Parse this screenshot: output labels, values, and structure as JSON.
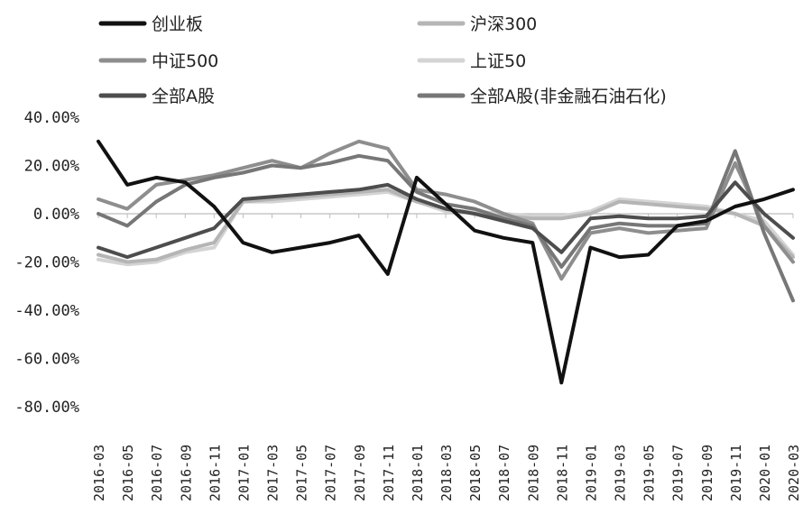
{
  "chart_data": {
    "type": "line",
    "title": "",
    "xlabel": "",
    "ylabel": "",
    "ylim": [
      -80,
      40
    ],
    "y_ticks": [
      "40.00%",
      "20.00%",
      "0.00%",
      "-20.00%",
      "-40.00%",
      "-60.00%",
      "-80.00%"
    ],
    "y_tick_values": [
      40,
      20,
      0,
      -20,
      -40,
      -60,
      -80
    ],
    "grid": false,
    "legend_position": "top",
    "categories": [
      "2016-03",
      "2016-05",
      "2016-07",
      "2016-09",
      "2016-11",
      "2017-01",
      "2017-03",
      "2017-05",
      "2017-07",
      "2017-09",
      "2017-11",
      "2018-01",
      "2018-03",
      "2018-05",
      "2018-07",
      "2018-09",
      "2018-11",
      "2019-01",
      "2019-03",
      "2019-05",
      "2019-07",
      "2019-09",
      "2019-11",
      "2020-01",
      "2020-03"
    ],
    "x_tick_labels": [
      "2016-03",
      "2016-05",
      "2016-07",
      "2016-09",
      "2016-11",
      "2017-01",
      "2017-03",
      "2017-05",
      "2017-07",
      "2017-09",
      "2017-11",
      "2018-01",
      "2018-03",
      "2018-05",
      "2018-07",
      "2018-09",
      "2018-11",
      "2019-01",
      "2019-03",
      "2019-05",
      "2019-07",
      "2019-09",
      "2019-11",
      "2020-01",
      "2020-03"
    ],
    "series": [
      {
        "name": "创业板",
        "color": "#111111",
        "values": [
          30,
          12,
          15,
          13,
          3,
          -12,
          -16,
          -14,
          -12,
          -9,
          -25,
          15,
          4,
          -7,
          -10,
          -12,
          -70,
          -14,
          -18,
          -17,
          -5,
          -3,
          3,
          6,
          10
        ]
      },
      {
        "name": "沪深300",
        "color": "#b5b5b5",
        "values": [
          -17,
          -20,
          -19,
          -15,
          -12,
          5,
          6,
          7,
          8,
          9,
          10,
          5,
          2,
          0,
          -1,
          -2,
          -2,
          0,
          5,
          4,
          3,
          2,
          0,
          -5,
          -18
        ]
      },
      {
        "name": "中证500",
        "color": "#8e8e8e",
        "values": [
          6,
          2,
          12,
          14,
          16,
          19,
          22,
          19,
          25,
          30,
          27,
          10,
          8,
          5,
          0,
          -4,
          -27,
          -8,
          -6,
          -8,
          -7,
          -6,
          21,
          -5,
          -20
        ]
      },
      {
        "name": "上证50",
        "color": "#d4d4d4",
        "values": [
          -19,
          -21,
          -20,
          -16,
          -14,
          5,
          5,
          6,
          7,
          8,
          9,
          5,
          1,
          1,
          0,
          -1,
          -1,
          1,
          6,
          5,
          4,
          3,
          0,
          -3,
          -17
        ]
      },
      {
        "name": "全部A股",
        "color": "#4d4d4d",
        "values": [
          -14,
          -18,
          -14,
          -10,
          -6,
          6,
          7,
          8,
          9,
          10,
          12,
          6,
          2,
          0,
          -3,
          -6,
          -16,
          -2,
          -1,
          -2,
          -2,
          -1,
          13,
          0,
          -10
        ]
      },
      {
        "name": "全部A股(非金融石油石化)",
        "color": "#777777",
        "values": [
          0,
          -5,
          5,
          12,
          15,
          17,
          20,
          19,
          21,
          24,
          22,
          9,
          4,
          2,
          -2,
          -5,
          -22,
          -6,
          -4,
          -5,
          -5,
          -4,
          26,
          -8,
          -36
        ]
      }
    ]
  }
}
